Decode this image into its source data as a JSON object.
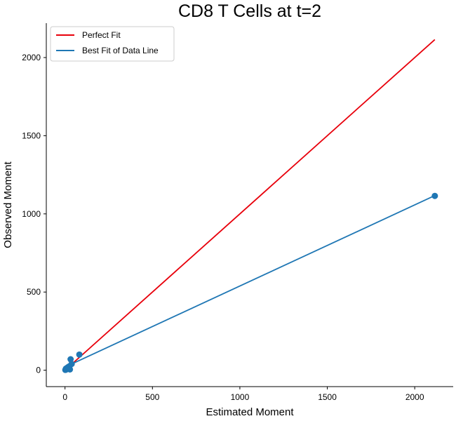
{
  "chart_data": {
    "type": "scatter",
    "title": "CD8 T Cells at t=2",
    "xlabel": "Estimated Moment",
    "ylabel": "Observed Moment",
    "xlim": [
      -107,
      2220
    ],
    "ylim": [
      -105,
      2220
    ],
    "xticks": [
      0,
      500,
      1000,
      1500,
      2000
    ],
    "yticks": [
      0,
      500,
      1000,
      1500,
      2000
    ],
    "grid": false,
    "legend_position": "top-left",
    "colors": {
      "perfect_fit": "#e8000b",
      "data": "#1f77b4"
    },
    "series": [
      {
        "name": "Perfect Fit",
        "kind": "line",
        "color": "#e8000b",
        "x": [
          0,
          2115
        ],
        "y": [
          0,
          2115
        ]
      },
      {
        "name": "Best Fit of Data Line",
        "kind": "line",
        "color": "#1f77b4",
        "x": [
          0,
          2115
        ],
        "y": [
          20,
          1117
        ]
      },
      {
        "kind": "scatter",
        "color": "#1f77b4",
        "x": [
          2,
          5,
          8,
          12,
          18,
          22,
          25,
          28,
          32,
          38,
          82,
          2115
        ],
        "y": [
          2,
          10,
          5,
          15,
          20,
          18,
          25,
          5,
          70,
          40,
          100,
          1115
        ]
      }
    ]
  }
}
